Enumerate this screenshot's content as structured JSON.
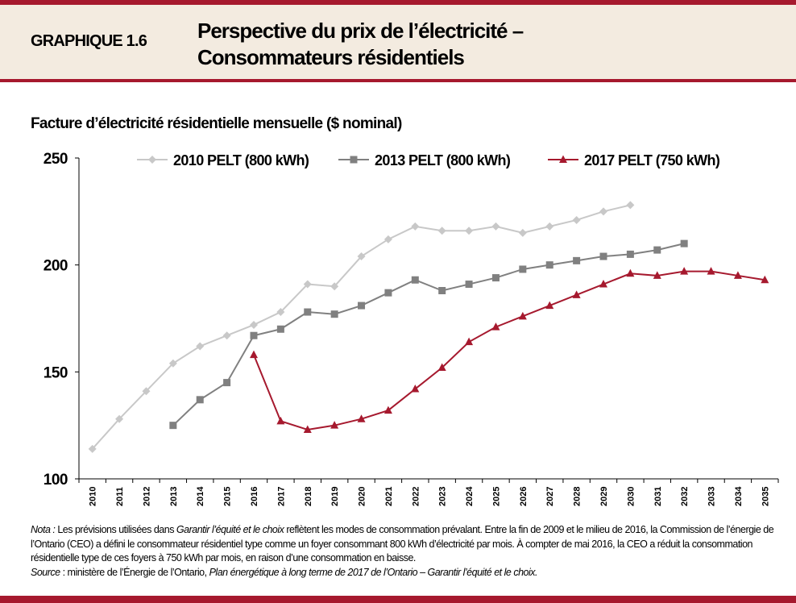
{
  "header": {
    "label": "GRAPHIQUE 1.6",
    "title_line1": "Perspective du prix de l’électricité –",
    "title_line2": "Consommateurs résidentiels"
  },
  "colors": {
    "accent": "#a6192e",
    "header_bg": "#f3ebe0"
  },
  "chart_data": {
    "type": "line",
    "title": "Facture d’électricité résidentielle mensuelle ($ nominal)",
    "xlabel": "",
    "ylabel": "",
    "ylim": [
      100,
      250
    ],
    "yticks": [
      100,
      150,
      200,
      250
    ],
    "grid": false,
    "legend_placement": "top",
    "categories": [
      "2010",
      "2011",
      "2012",
      "2013",
      "2014",
      "2015",
      "2016",
      "2017",
      "2018",
      "2019",
      "2020",
      "2021",
      "2022",
      "2023",
      "2024",
      "2025",
      "2026",
      "2027",
      "2028",
      "2029",
      "2030",
      "2031",
      "2032",
      "2033",
      "2034",
      "2035"
    ],
    "series": [
      {
        "name": "2010 PELT (800 kWh)",
        "color": "#c8c8c8",
        "marker": "diamond",
        "values": [
          114,
          128,
          141,
          154,
          162,
          167,
          172,
          178,
          191,
          190,
          204,
          212,
          218,
          216,
          216,
          218,
          215,
          218,
          221,
          225,
          228,
          null,
          null,
          null,
          null,
          null
        ]
      },
      {
        "name": "2013 PELT (800 kWh)",
        "color": "#808080",
        "marker": "square",
        "values": [
          null,
          null,
          null,
          125,
          137,
          145,
          167,
          170,
          178,
          177,
          181,
          187,
          193,
          188,
          191,
          194,
          198,
          200,
          202,
          204,
          205,
          207,
          210,
          null,
          null,
          null
        ]
      },
      {
        "name": "2017 PELT (750 kWh)",
        "color": "#a6192e",
        "marker": "triangle",
        "values": [
          null,
          null,
          null,
          null,
          null,
          null,
          158,
          127,
          123,
          125,
          128,
          132,
          142,
          152,
          164,
          171,
          176,
          181,
          186,
          191,
          196,
          195,
          197,
          197,
          195,
          193
        ]
      }
    ]
  },
  "note": {
    "nota_label": "Nota :",
    "nota_t1": " Les prévisions utilisées dans ",
    "nota_i1": "Garantir l’équité et le choix",
    "nota_t2": " reflètent les modes de consommation prévalant. Entre la fin de 2009 et le milieu de 2016, la Commission de l’énergie de l’Ontario (CEO) a défini le consommateur résidentiel type comme un foyer consommant 800 kWh d’électricité par mois. À compter de mai 2016, la CEO a réduit la consommation résidentielle type de ces foyers à 750 kWh par mois, en raison d’une consommation en baisse.",
    "source_label": "Source",
    "source_t1": " : ministère de l’Énergie de l’Ontario, ",
    "source_i1": "Plan énergétique à long terme de 2017 de l’Ontario – Garantir l’équité et le choix."
  }
}
